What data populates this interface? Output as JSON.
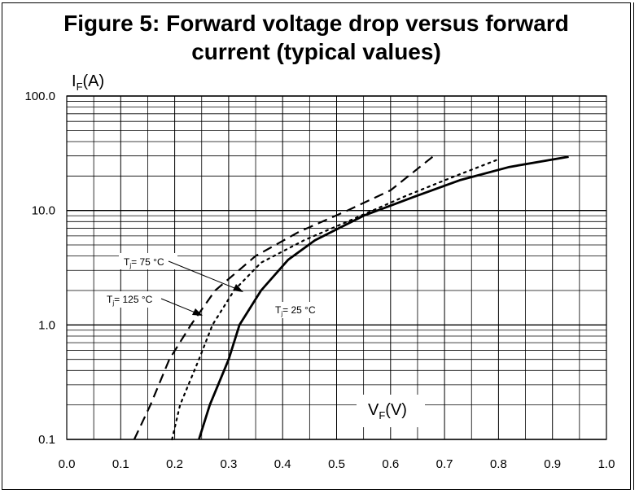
{
  "title_line1": "Figure 5: Forward voltage drop versus forward",
  "title_line2": "current (typical values)",
  "chart_data": {
    "type": "line",
    "title": "Figure 5: Forward voltage drop versus forward current (typical values)",
    "xlabel": {
      "main": "V",
      "sub": "F",
      "unit": "(V)"
    },
    "ylabel": {
      "main": "I",
      "sub": "F",
      "unit": "(A)"
    },
    "xlim": [
      0.0,
      1.0
    ],
    "ylim": [
      0.1,
      100.0
    ],
    "yscale": "log",
    "grid": true,
    "x_ticks": [
      "0.0",
      "0.1",
      "0.2",
      "0.3",
      "0.4",
      "0.5",
      "0.6",
      "0.7",
      "0.8",
      "0.9",
      "1.0"
    ],
    "y_ticks": [
      {
        "value": 100,
        "label": "100.0"
      },
      {
        "value": 10,
        "label": "10.0"
      },
      {
        "value": 1,
        "label": "1.0"
      },
      {
        "value": 0.1,
        "label": "0.1"
      }
    ],
    "series": [
      {
        "name": "Tj = 25 °C",
        "label_main": "T",
        "label_sub": "j",
        "label_rest": "= 25 °C",
        "style": "solid",
        "points": [
          [
            0.245,
            0.1
          ],
          [
            0.265,
            0.2
          ],
          [
            0.3,
            0.5
          ],
          [
            0.32,
            1.0
          ],
          [
            0.36,
            2.0
          ],
          [
            0.41,
            3.7
          ],
          [
            0.46,
            5.5
          ],
          [
            0.55,
            9.0
          ],
          [
            0.65,
            13.5
          ],
          [
            0.73,
            18.5
          ],
          [
            0.82,
            24.0
          ],
          [
            0.93,
            29.5
          ]
        ]
      },
      {
        "name": "Tj = 75 °C",
        "label_main": "T",
        "label_sub": "j",
        "label_rest": "= 75 °C",
        "style": "dotted",
        "points": [
          [
            0.195,
            0.1
          ],
          [
            0.21,
            0.2
          ],
          [
            0.245,
            0.5
          ],
          [
            0.27,
            1.0
          ],
          [
            0.31,
            2.0
          ],
          [
            0.36,
            3.5
          ],
          [
            0.44,
            5.5
          ],
          [
            0.52,
            8.0
          ],
          [
            0.63,
            13.5
          ],
          [
            0.72,
            20.0
          ],
          [
            0.8,
            28.0
          ]
        ]
      },
      {
        "name": "Tj = 125 °C",
        "label_main": "T",
        "label_sub": "j",
        "label_rest": "= 125 °C",
        "style": "dashed",
        "points": [
          [
            0.125,
            0.1
          ],
          [
            0.155,
            0.2
          ],
          [
            0.19,
            0.5
          ],
          [
            0.23,
            1.0
          ],
          [
            0.275,
            2.0
          ],
          [
            0.35,
            4.0
          ],
          [
            0.43,
            6.5
          ],
          [
            0.52,
            10.0
          ],
          [
            0.6,
            15.0
          ],
          [
            0.68,
            30.0
          ]
        ]
      }
    ]
  }
}
